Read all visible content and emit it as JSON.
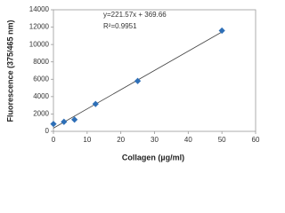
{
  "chart_data": {
    "type": "scatter",
    "x_label": "Collagen (µg/ml)",
    "y_label": "Fluorescence (375/465 nm)",
    "annotations": [
      "y=221.57x + 369.66",
      "R²=0.9951"
    ],
    "trendline": {
      "slope": 221.57,
      "intercept": 369.66
    },
    "series": [
      {
        "color": "#2e6fb7",
        "x": [
          0,
          3.125,
          6.25,
          12.5,
          25,
          50
        ],
        "values": [
          850,
          1100,
          1350,
          3150,
          5800,
          11600
        ]
      }
    ],
    "xlim": [
      0,
      60
    ],
    "xticks": [
      0,
      10,
      20,
      30,
      40,
      50,
      60
    ],
    "ylim": [
      0,
      14000
    ],
    "yticks": [
      0,
      2000,
      4000,
      6000,
      8000,
      10000,
      12000,
      14000
    ]
  }
}
